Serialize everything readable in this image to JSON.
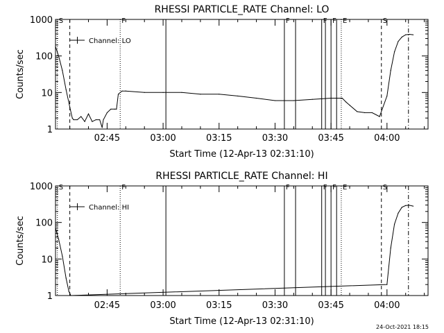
{
  "footer": {
    "timestamp": "24-Oct-2021 18:15"
  },
  "chart_data": [
    {
      "type": "line",
      "title": "RHESSI PARTICLE_RATE Channel: LO",
      "xlabel": "Start Time (12-Apr-13 02:31:10)",
      "ylabel": "Counts/sec",
      "yscale": "log",
      "ylim": [
        1,
        1000
      ],
      "xlim": [
        "02:31:10",
        "04:11:00"
      ],
      "xticks": [
        "02:45",
        "03:00",
        "03:15",
        "03:30",
        "03:45",
        "04:00"
      ],
      "yticks": [
        "1",
        "10",
        "100",
        "1000"
      ],
      "grid": false,
      "legend": "top-left",
      "series": [
        {
          "name": "Channel: LO",
          "x": [
            "02:31:10",
            "02:32:00",
            "02:33:00",
            "02:34:00",
            "02:35:00",
            "02:35:40",
            "02:36:00",
            "02:37:00",
            "02:38:00",
            "02:39:00",
            "02:40:00",
            "02:41:00",
            "02:42:00",
            "02:43:00",
            "02:43:40",
            "02:44:00",
            "02:45:00",
            "02:46:00",
            "02:47:00",
            "02:47:30",
            "02:48:00",
            "02:49:00",
            "02:50:00",
            "02:55:00",
            "03:00:00",
            "03:05:00",
            "03:10:00",
            "03:15:00",
            "03:20:00",
            "03:25:00",
            "03:30:00",
            "03:35:00",
            "03:40:00",
            "03:45:00",
            "03:48:00",
            "03:49:00",
            "03:50:00",
            "03:52:00",
            "03:54:00",
            "03:56:00",
            "03:58:00",
            "04:00:00",
            "04:01:00",
            "04:02:00",
            "04:03:00",
            "04:04:00",
            "04:05:00",
            "04:06:00",
            "04:07:00"
          ],
          "y": [
            180,
            100,
            40,
            12,
            4,
            2,
            1.8,
            1.8,
            2.2,
            1.6,
            2.6,
            1.6,
            1.8,
            1.8,
            1.1,
            1.8,
            2.8,
            3.5,
            3.5,
            3.5,
            9,
            11,
            11,
            10,
            10,
            10,
            9,
            9,
            8,
            7,
            6,
            6,
            6.5,
            7,
            7,
            5.5,
            4.5,
            3,
            2.8,
            2.8,
            2.2,
            8,
            40,
            130,
            250,
            330,
            380,
            390,
            380
          ]
        }
      ],
      "vlines": [
        {
          "x": "02:31:40",
          "style": "dotted",
          "label": "S"
        },
        {
          "x": "02:35:00",
          "style": "dashed",
          "label": ""
        },
        {
          "x": "02:48:30",
          "style": "dotted",
          "label": "F"
        },
        {
          "x": "03:00:45",
          "style": "solid",
          "label": ""
        },
        {
          "x": "03:32:30",
          "style": "solid",
          "label": "F"
        },
        {
          "x": "03:35:30",
          "style": "solid",
          "label": ""
        },
        {
          "x": "03:42:30",
          "style": "solid",
          "label": "F"
        },
        {
          "x": "03:43:30",
          "style": "solid",
          "label": ""
        },
        {
          "x": "03:45:00",
          "style": "solid",
          "label": "F"
        },
        {
          "x": "03:46:30",
          "style": "solid",
          "label": ""
        },
        {
          "x": "03:47:45",
          "style": "dotted",
          "label": "E"
        },
        {
          "x": "03:58:30",
          "style": "dashed",
          "label": "S"
        },
        {
          "x": "04:05:45",
          "style": "dashdot",
          "label": ""
        }
      ]
    },
    {
      "type": "line",
      "title": "RHESSI PARTICLE_RATE Channel: HI",
      "xlabel": "Start Time (12-Apr-13 02:31:10)",
      "ylabel": "Counts/sec",
      "yscale": "log",
      "ylim": [
        1,
        1000
      ],
      "xlim": [
        "02:31:10",
        "04:11:00"
      ],
      "xticks": [
        "02:45",
        "03:00",
        "03:15",
        "03:30",
        "03:45",
        "04:00"
      ],
      "yticks": [
        "1",
        "10",
        "100",
        "1000"
      ],
      "grid": false,
      "legend": "top-left",
      "series": [
        {
          "name": "Channel: HI",
          "x": [
            "02:31:10",
            "02:32:00",
            "02:33:00",
            "02:34:00",
            "02:34:45",
            "02:35:15",
            "04:00:00",
            "04:01:00",
            "04:02:00",
            "04:03:00",
            "04:04:00",
            "04:05:00",
            "04:06:00",
            "04:07:00"
          ],
          "y": [
            70,
            35,
            12,
            3,
            1.3,
            1,
            2,
            20,
            90,
            180,
            260,
            290,
            295,
            280
          ]
        }
      ],
      "vlines": [
        {
          "x": "02:31:40",
          "style": "dotted",
          "label": "S"
        },
        {
          "x": "02:35:00",
          "style": "dashed",
          "label": ""
        },
        {
          "x": "02:48:30",
          "style": "dotted",
          "label": "F"
        },
        {
          "x": "03:00:45",
          "style": "solid",
          "label": ""
        },
        {
          "x": "03:32:30",
          "style": "solid",
          "label": "F"
        },
        {
          "x": "03:35:30",
          "style": "solid",
          "label": ""
        },
        {
          "x": "03:42:30",
          "style": "solid",
          "label": "F"
        },
        {
          "x": "03:43:30",
          "style": "solid",
          "label": ""
        },
        {
          "x": "03:45:00",
          "style": "solid",
          "label": "F"
        },
        {
          "x": "03:46:30",
          "style": "solid",
          "label": ""
        },
        {
          "x": "03:47:45",
          "style": "dotted",
          "label": "E"
        },
        {
          "x": "03:58:30",
          "style": "dashed",
          "label": "S"
        },
        {
          "x": "04:05:45",
          "style": "dashdot",
          "label": ""
        }
      ]
    }
  ]
}
